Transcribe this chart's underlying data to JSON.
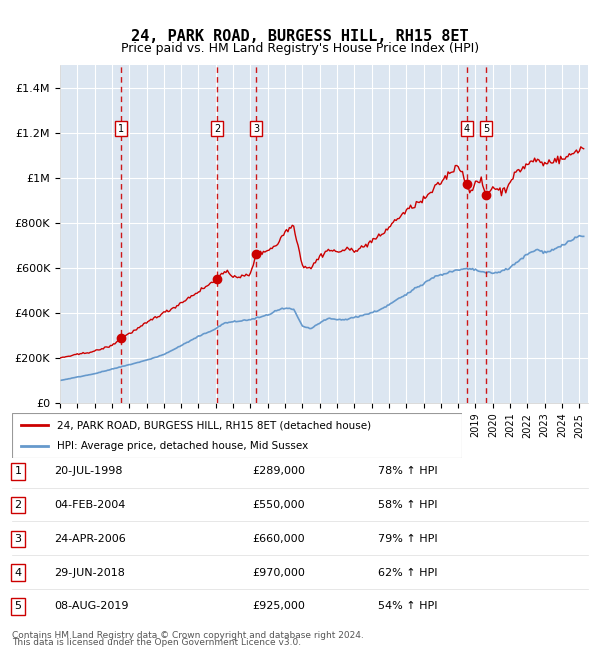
{
  "title": "24, PARK ROAD, BURGESS HILL, RH15 8ET",
  "subtitle": "Price paid vs. HM Land Registry's House Price Index (HPI)",
  "legend_red": "24, PARK ROAD, BURGESS HILL, RH15 8ET (detached house)",
  "legend_blue": "HPI: Average price, detached house, Mid Sussex",
  "footer1": "Contains HM Land Registry data © Crown copyright and database right 2024.",
  "footer2": "This data is licensed under the Open Government Licence v3.0.",
  "transactions": [
    {
      "num": 1,
      "date": "20-JUL-1998",
      "price": 289000,
      "hpi": "78%"
    },
    {
      "num": 2,
      "date": "04-FEB-2004",
      "price": 550000,
      "hpi": "58%"
    },
    {
      "num": 3,
      "date": "24-APR-2006",
      "price": 660000,
      "hpi": "79%"
    },
    {
      "num": 4,
      "date": "29-JUN-2018",
      "price": 970000,
      "hpi": "62%"
    },
    {
      "num": 5,
      "date": "08-AUG-2019",
      "price": 925000,
      "hpi": "54%"
    }
  ],
  "transaction_dates_decimal": [
    1998.55,
    2004.09,
    2006.32,
    2018.49,
    2019.6
  ],
  "transaction_prices": [
    289000,
    550000,
    660000,
    970000,
    925000
  ],
  "ylim": [
    0,
    1500000
  ],
  "xlim_start": 1995.0,
  "xlim_end": 2025.5,
  "background_color": "#dce6f1",
  "plot_bg_color": "#dce6f1",
  "red_color": "#cc0000",
  "blue_color": "#6699cc",
  "dashed_color": "#cc0000",
  "grid_color": "#ffffff",
  "title_fontsize": 11,
  "subtitle_fontsize": 9
}
